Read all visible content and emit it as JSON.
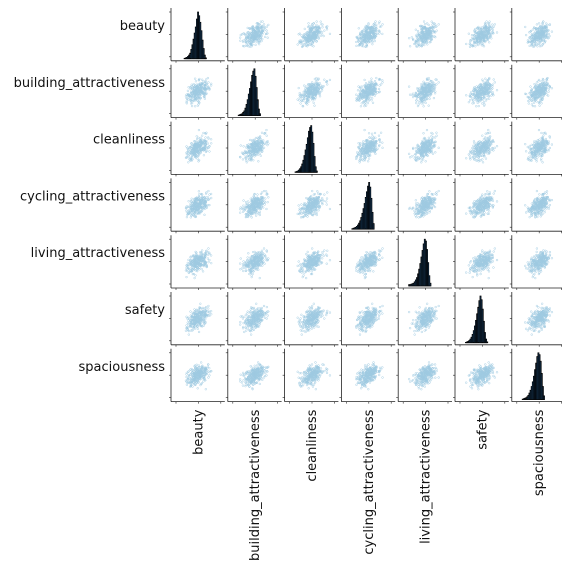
{
  "chart_data": {
    "type": "scatter",
    "kind": "scatter-matrix",
    "title": "",
    "variables": [
      "beauty",
      "building_attractiveness",
      "cleanliness",
      "cycling_attractiveness",
      "living_attractiveness",
      "safety",
      "spaciousness"
    ],
    "diagonal": "histogram",
    "off_diagonal": "scatter",
    "axis_range": [
      -5,
      5
    ],
    "grid": false,
    "legend": "none",
    "n_points_per_panel": 300,
    "histograms": [
      {
        "variable": "beauty",
        "bin_edges_start": -3.2,
        "bin_width": 0.25,
        "counts": [
          1,
          2,
          3,
          5,
          8,
          12,
          20,
          30,
          42,
          55,
          68,
          85,
          100,
          92,
          78,
          60,
          40,
          22,
          8,
          2
        ]
      },
      {
        "variable": "building_attractiveness",
        "bin_edges_start": -3.8,
        "bin_width": 0.25,
        "counts": [
          1,
          2,
          3,
          4,
          7,
          10,
          16,
          24,
          34,
          46,
          58,
          72,
          86,
          95,
          100,
          84,
          60,
          34,
          14,
          4
        ]
      },
      {
        "variable": "cleanliness",
        "bin_edges_start": -3.8,
        "bin_width": 0.25,
        "counts": [
          1,
          2,
          3,
          5,
          8,
          12,
          18,
          26,
          36,
          48,
          60,
          74,
          88,
          96,
          100,
          86,
          62,
          34,
          12,
          3
        ]
      },
      {
        "variable": "cycling_attractiveness",
        "bin_edges_start": -3.8,
        "bin_width": 0.25,
        "counts": [
          1,
          2,
          3,
          4,
          6,
          9,
          13,
          18,
          25,
          34,
          44,
          55,
          68,
          80,
          92,
          100,
          90,
          66,
          36,
          12
        ]
      },
      {
        "variable": "living_attractiveness",
        "bin_edges_start": -3.8,
        "bin_width": 0.25,
        "counts": [
          3,
          3,
          4,
          5,
          6,
          9,
          13,
          18,
          26,
          36,
          48,
          62,
          76,
          90,
          100,
          96,
          78,
          50,
          22,
          6
        ]
      },
      {
        "variable": "safety",
        "bin_edges_start": -3.8,
        "bin_width": 0.25,
        "counts": [
          1,
          2,
          3,
          5,
          8,
          12,
          18,
          26,
          36,
          48,
          62,
          76,
          90,
          100,
          92,
          72,
          46,
          22,
          8,
          2
        ]
      },
      {
        "variable": "spaciousness",
        "bin_edges_start": -3.8,
        "bin_width": 0.25,
        "counts": [
          1,
          2,
          3,
          4,
          6,
          9,
          14,
          20,
          28,
          38,
          50,
          64,
          78,
          92,
          100,
          96,
          82,
          56,
          28,
          8
        ]
      }
    ],
    "colors": {
      "scatter": "#9ecae1",
      "histogram": "#1f4e79",
      "edge": "#000000"
    }
  }
}
